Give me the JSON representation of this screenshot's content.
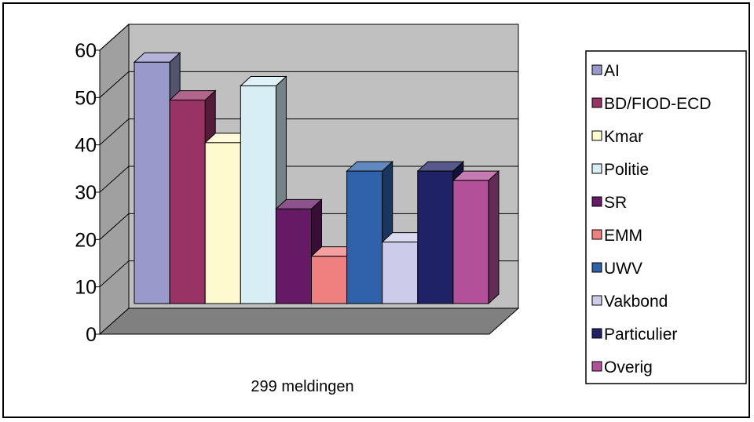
{
  "chart_data": {
    "type": "bar",
    "title": "",
    "xlabel": "",
    "ylabel": "",
    "categories": [
      "299 meldingen"
    ],
    "ylim": [
      0,
      60
    ],
    "yticks": [
      0,
      10,
      20,
      30,
      40,
      50,
      60
    ],
    "grid": true,
    "legend_position": "right",
    "series": [
      {
        "name": "AI",
        "values": [
          51
        ],
        "color": "#9999cc"
      },
      {
        "name": "BD/FIOD-ECD",
        "values": [
          43
        ],
        "color": "#993366"
      },
      {
        "name": "Kmar",
        "values": [
          34
        ],
        "color": "#fffacd"
      },
      {
        "name": "Politie",
        "values": [
          46
        ],
        "color": "#d6eef4"
      },
      {
        "name": "SR",
        "values": [
          20
        ],
        "color": "#661a66"
      },
      {
        "name": "EMM",
        "values": [
          10
        ],
        "color": "#f08080"
      },
      {
        "name": "UWV",
        "values": [
          28
        ],
        "color": "#2e62aa"
      },
      {
        "name": "Vakbond",
        "values": [
          13
        ],
        "color": "#ccccea"
      },
      {
        "name": "Particulier",
        "values": [
          28
        ],
        "color": "#1f2266"
      },
      {
        "name": "Overig",
        "values": [
          26
        ],
        "color": "#b3509a"
      }
    ]
  }
}
